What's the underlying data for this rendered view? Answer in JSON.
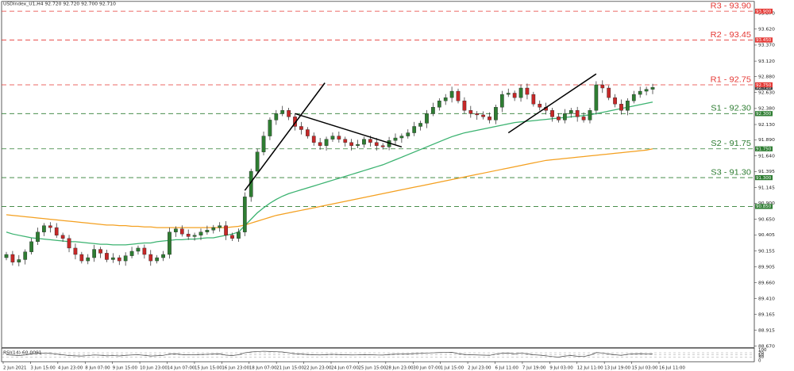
{
  "chart_data": {
    "type": "candlestick",
    "header": "USDIndex_U1,H4  92.720 92.720 92.700 92.710",
    "rsi_header": "RSI(14) 60.0091",
    "colors": {
      "bull": "#2e7d32",
      "bear": "#c62828",
      "resistance": "#e53935",
      "support": "#2e7d32",
      "ma_fast": "#3cb371",
      "ma_slow": "#f4a020",
      "trendline": "#000000",
      "rsi": "#444444",
      "grid_dash": "#999999"
    },
    "price_axis": {
      "ylim": [
        88.67,
        94.03
      ],
      "ticks": [
        "93.870",
        "93.620",
        "93.370",
        "93.120",
        "92.880",
        "92.630",
        "92.380",
        "92.130",
        "91.890",
        "91.640",
        "91.395",
        "91.145",
        "90.900",
        "90.650",
        "90.405",
        "90.155",
        "89.905",
        "89.660",
        "89.410",
        "89.165",
        "88.915",
        "88.670"
      ]
    },
    "rsi_axis": {
      "ylim": [
        0,
        100
      ],
      "ticks": [
        "100",
        "70",
        "50",
        "30",
        "0"
      ]
    },
    "x_labels": [
      "2 Jun 2021",
      "3 Jun 15:00",
      "4 Jun 23:00",
      "8 Jun 07:00",
      "9 Jun 15:00",
      "10 Jun 23:00",
      "14 Jun 07:00",
      "15 Jun 15:00",
      "16 Jun 23:00",
      "18 Jun 07:00",
      "21 Jun 15:00",
      "22 Jun 23:00",
      "24 Jun 07:00",
      "25 Jun 15:00",
      "28 Jun 23:00",
      "30 Jun 07:00",
      "1 Jul 15:00",
      "2 Jul 23:00",
      "6 Jul 11:00",
      "7 Jul 19:00",
      "9 Jul 03:00",
      "12 Jul 11:00",
      "13 Jul 19:00",
      "15 Jul 03:00",
      "16 Jul 11:00"
    ],
    "levels": [
      {
        "label": "R3 - 93.90",
        "value": 93.9,
        "kind": "resistance",
        "tag": "93.900"
      },
      {
        "label": "R2 - 93.45",
        "value": 93.45,
        "kind": "resistance",
        "tag": "93.450"
      },
      {
        "label": "R1 - 92.75",
        "value": 92.75,
        "kind": "resistance",
        "tag": "92.750"
      },
      {
        "label": "S1 - 92.30",
        "value": 92.3,
        "kind": "support",
        "tag": "92.300"
      },
      {
        "label": "S2 - 91.75",
        "value": 91.75,
        "kind": "support",
        "tag": "91.750"
      },
      {
        "label": "S3 - 91.30",
        "value": 91.3,
        "kind": "support",
        "tag": "91.300"
      },
      {
        "label": "",
        "value": 90.85,
        "kind": "support",
        "tag": "90.850"
      }
    ],
    "current_price_tag": "92.710",
    "closes": [
      90.1,
      89.98,
      90.02,
      90.14,
      90.3,
      90.45,
      90.55,
      90.52,
      90.4,
      90.35,
      90.2,
      90.1,
      90.0,
      90.05,
      90.18,
      90.12,
      90.02,
      90.05,
      90.0,
      90.08,
      90.15,
      90.2,
      90.1,
      90.0,
      90.05,
      90.1,
      90.45,
      90.5,
      90.42,
      90.38,
      90.4,
      90.45,
      90.48,
      90.52,
      90.55,
      90.4,
      90.35,
      90.45,
      91.0,
      91.4,
      91.7,
      91.95,
      92.2,
      92.3,
      92.35,
      92.25,
      92.1,
      92.05,
      91.95,
      91.85,
      91.8,
      91.9,
      91.95,
      91.9,
      91.85,
      91.8,
      91.82,
      91.9,
      91.85,
      91.8,
      91.78,
      91.88,
      91.92,
      91.95,
      92.0,
      92.1,
      92.15,
      92.3,
      92.4,
      92.5,
      92.55,
      92.65,
      92.5,
      92.35,
      92.3,
      92.28,
      92.25,
      92.2,
      92.4,
      92.6,
      92.62,
      92.55,
      92.7,
      92.6,
      92.45,
      92.4,
      92.35,
      92.25,
      92.2,
      92.3,
      92.35,
      92.25,
      92.2,
      92.35,
      92.75,
      92.7,
      92.55,
      92.45,
      92.35,
      92.5,
      92.6,
      92.65,
      92.68,
      92.71
    ],
    "ma_fast": [
      90.45,
      90.42,
      90.4,
      90.38,
      90.36,
      90.35,
      90.34,
      90.33,
      90.32,
      90.31,
      90.3,
      90.3,
      90.29,
      90.28,
      90.27,
      90.26,
      90.26,
      90.25,
      90.25,
      90.25,
      90.26,
      90.27,
      90.28,
      90.28,
      90.3,
      90.31,
      90.32,
      90.33,
      90.33,
      90.34,
      90.34,
      90.35,
      90.36,
      90.36,
      90.38,
      90.4,
      90.42,
      90.45,
      90.55,
      90.65,
      90.75,
      90.83,
      90.9,
      90.96,
      91.01,
      91.05,
      91.08,
      91.11,
      91.14,
      91.17,
      91.2,
      91.23,
      91.26,
      91.29,
      91.32,
      91.35,
      91.38,
      91.41,
      91.44,
      91.47,
      91.5,
      91.54,
      91.58,
      91.62,
      91.66,
      91.7,
      91.74,
      91.78,
      91.82,
      91.86,
      91.9,
      91.94,
      91.97,
      92.0,
      92.02,
      92.04,
      92.06,
      92.08,
      92.1,
      92.12,
      92.14,
      92.16,
      92.17,
      92.18,
      92.19,
      92.2,
      92.21,
      92.22,
      92.23,
      92.24,
      92.25,
      92.26,
      92.27,
      92.28,
      92.3,
      92.32,
      92.34,
      92.36,
      92.38,
      92.4,
      92.42,
      92.44,
      92.46,
      92.48
    ],
    "ma_slow": [
      90.72,
      90.71,
      90.7,
      90.69,
      90.68,
      90.67,
      90.66,
      90.65,
      90.64,
      90.63,
      90.62,
      90.61,
      90.6,
      90.59,
      90.58,
      90.57,
      90.56,
      90.56,
      90.55,
      90.55,
      90.54,
      90.54,
      90.53,
      90.53,
      90.52,
      90.52,
      90.52,
      90.52,
      90.52,
      90.52,
      90.52,
      90.52,
      90.52,
      90.52,
      90.52,
      90.52,
      90.53,
      90.54,
      90.56,
      90.59,
      90.62,
      90.65,
      90.68,
      90.71,
      90.73,
      90.75,
      90.77,
      90.79,
      90.81,
      90.83,
      90.85,
      90.87,
      90.89,
      90.91,
      90.93,
      90.95,
      90.97,
      90.99,
      91.01,
      91.03,
      91.05,
      91.07,
      91.09,
      91.11,
      91.13,
      91.15,
      91.17,
      91.19,
      91.21,
      91.23,
      91.25,
      91.27,
      91.29,
      91.31,
      91.33,
      91.35,
      91.37,
      91.39,
      91.41,
      91.43,
      91.45,
      91.47,
      91.49,
      91.51,
      91.53,
      91.55,
      91.57,
      91.58,
      91.59,
      91.6,
      91.61,
      91.62,
      91.63,
      91.64,
      91.65,
      91.66,
      91.67,
      91.68,
      91.69,
      91.7,
      91.71,
      91.72,
      91.73,
      91.75
    ],
    "rsi": [
      52,
      48,
      45,
      50,
      60,
      65,
      68,
      66,
      58,
      52,
      45,
      42,
      40,
      44,
      50,
      47,
      42,
      44,
      41,
      46,
      50,
      52,
      46,
      40,
      43,
      46,
      58,
      60,
      54,
      52,
      53,
      55,
      56,
      58,
      60,
      48,
      45,
      52,
      70,
      78,
      82,
      85,
      83,
      80,
      78,
      70,
      62,
      58,
      55,
      52,
      50,
      54,
      56,
      54,
      52,
      50,
      51,
      54,
      52,
      50,
      49,
      55,
      57,
      58,
      60,
      63,
      65,
      68,
      70,
      72,
      73,
      75,
      62,
      55,
      52,
      50,
      48,
      46,
      58,
      66,
      67,
      60,
      68,
      60,
      52,
      48,
      42,
      35,
      30,
      40,
      45,
      38,
      35,
      48,
      72,
      68,
      58,
      52,
      46,
      56,
      60,
      62,
      61,
      60
    ]
  }
}
